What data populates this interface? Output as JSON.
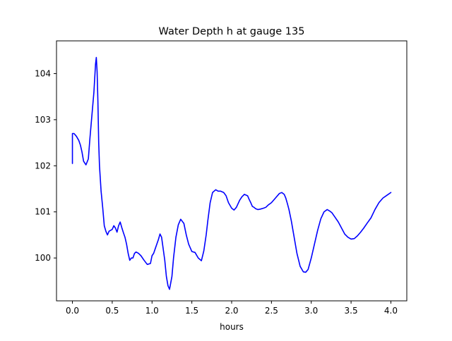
{
  "chart_data": {
    "type": "line",
    "title": "Water Depth h at gauge 135",
    "xlabel": "hours",
    "ylabel": "",
    "xlim": [
      -0.2,
      4.2
    ],
    "ylim": [
      99.07,
      104.71
    ],
    "xticks": [
      0.0,
      0.5,
      1.0,
      1.5,
      2.0,
      2.5,
      3.0,
      3.5,
      4.0
    ],
    "xtick_labels": [
      "0.0",
      "0.5",
      "1.0",
      "1.5",
      "2.0",
      "2.5",
      "3.0",
      "3.5",
      "4.0"
    ],
    "yticks": [
      100,
      101,
      102,
      103,
      104
    ],
    "ytick_labels": [
      "100",
      "101",
      "102",
      "103",
      "104"
    ],
    "grid": false,
    "legend": false,
    "line_color": "#0000ff",
    "series": [
      {
        "x": [
          0.0,
          0.0,
          0.02,
          0.05,
          0.08,
          0.1,
          0.12,
          0.14,
          0.17,
          0.2,
          0.22,
          0.25,
          0.27,
          0.29,
          0.3,
          0.31,
          0.32,
          0.33,
          0.34,
          0.36,
          0.38,
          0.4,
          0.42,
          0.44,
          0.46,
          0.48,
          0.5,
          0.52,
          0.54,
          0.56,
          0.58,
          0.6,
          0.62,
          0.64,
          0.66,
          0.68,
          0.7,
          0.72,
          0.74,
          0.76,
          0.78,
          0.8,
          0.83,
          0.86,
          0.9,
          0.94,
          0.98,
          1.0,
          1.02,
          1.04,
          1.06,
          1.08,
          1.1,
          1.12,
          1.14,
          1.16,
          1.18,
          1.2,
          1.22,
          1.25,
          1.27,
          1.3,
          1.33,
          1.36,
          1.4,
          1.43,
          1.46,
          1.5,
          1.54,
          1.58,
          1.62,
          1.65,
          1.68,
          1.7,
          1.73,
          1.76,
          1.8,
          1.83,
          1.86,
          1.9,
          1.93,
          1.96,
          2.0,
          2.03,
          2.06,
          2.1,
          2.13,
          2.16,
          2.2,
          2.22,
          2.24,
          2.26,
          2.28,
          2.3,
          2.33,
          2.36,
          2.4,
          2.43,
          2.46,
          2.5,
          2.55,
          2.6,
          2.63,
          2.66,
          2.68,
          2.7,
          2.72,
          2.75,
          2.78,
          2.82,
          2.86,
          2.9,
          2.93,
          2.96,
          3.0,
          3.04,
          3.08,
          3.12,
          3.16,
          3.2,
          3.23,
          3.26,
          3.3,
          3.34,
          3.38,
          3.42,
          3.46,
          3.5,
          3.54,
          3.58,
          3.62,
          3.66,
          3.7,
          3.75,
          3.8,
          3.85,
          3.9,
          3.95,
          4.0
        ],
        "y": [
          102.05,
          102.7,
          102.7,
          102.64,
          102.55,
          102.45,
          102.3,
          102.1,
          102.02,
          102.15,
          102.6,
          103.2,
          103.6,
          104.2,
          104.35,
          104.05,
          103.4,
          102.5,
          102.0,
          101.45,
          101.1,
          100.7,
          100.58,
          100.5,
          100.58,
          100.6,
          100.62,
          100.7,
          100.65,
          100.56,
          100.7,
          100.78,
          100.66,
          100.55,
          100.45,
          100.3,
          100.1,
          99.95,
          100.0,
          100.0,
          100.1,
          100.13,
          100.1,
          100.05,
          99.95,
          99.86,
          99.88,
          100.05,
          100.1,
          100.2,
          100.3,
          100.4,
          100.52,
          100.45,
          100.2,
          99.95,
          99.6,
          99.4,
          99.32,
          99.6,
          100.0,
          100.45,
          100.72,
          100.84,
          100.75,
          100.5,
          100.3,
          100.14,
          100.12,
          100.0,
          99.94,
          100.15,
          100.5,
          100.8,
          101.2,
          101.42,
          101.48,
          101.45,
          101.45,
          101.42,
          101.35,
          101.2,
          101.08,
          101.04,
          101.1,
          101.25,
          101.33,
          101.38,
          101.35,
          101.27,
          101.2,
          101.12,
          101.1,
          101.07,
          101.05,
          101.06,
          101.08,
          101.1,
          101.15,
          101.2,
          101.3,
          101.4,
          101.42,
          101.38,
          101.3,
          101.18,
          101.05,
          100.8,
          100.5,
          100.1,
          99.82,
          99.7,
          99.69,
          99.75,
          100.0,
          100.3,
          100.6,
          100.85,
          101.0,
          101.05,
          101.02,
          100.98,
          100.88,
          100.78,
          100.65,
          100.52,
          100.45,
          100.41,
          100.42,
          100.48,
          100.56,
          100.65,
          100.75,
          100.87,
          101.05,
          101.2,
          101.3,
          101.36,
          101.42
        ]
      }
    ]
  }
}
